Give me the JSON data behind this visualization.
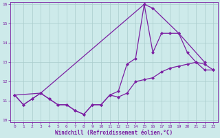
{
  "xlabel": "Windchill (Refroidissement éolien,°C)",
  "bg_color": "#cdeaea",
  "line_color": "#7b1fa2",
  "grid_color": "#aacccc",
  "xlim": [
    -0.5,
    23.5
  ],
  "ylim": [
    9.9,
    16.1
  ],
  "yticks": [
    10,
    11,
    12,
    13,
    14,
    15,
    16
  ],
  "xticks": [
    0,
    1,
    2,
    3,
    4,
    5,
    6,
    7,
    8,
    9,
    10,
    11,
    12,
    13,
    14,
    15,
    16,
    17,
    18,
    19,
    20,
    21,
    22,
    23
  ],
  "line1_x": [
    0,
    1,
    2,
    3,
    4,
    5,
    6,
    7,
    8,
    9,
    10,
    11,
    12,
    13,
    14,
    15,
    16,
    17,
    18,
    19,
    20,
    21,
    22,
    23
  ],
  "line1_y": [
    11.3,
    10.8,
    11.1,
    11.4,
    11.1,
    10.8,
    10.8,
    10.5,
    10.3,
    10.8,
    10.8,
    11.3,
    11.2,
    11.4,
    12.0,
    12.1,
    12.2,
    12.5,
    12.7,
    12.8,
    12.9,
    13.0,
    12.6,
    12.6
  ],
  "line2_x": [
    0,
    1,
    2,
    3,
    4,
    5,
    6,
    7,
    8,
    9,
    10,
    11,
    12,
    13,
    14,
    15,
    16,
    17,
    18,
    19,
    20,
    21,
    22,
    23
  ],
  "line2_y": [
    11.3,
    10.8,
    11.1,
    11.4,
    11.1,
    10.8,
    10.8,
    10.5,
    10.3,
    10.8,
    10.8,
    11.3,
    11.5,
    12.9,
    13.2,
    16.0,
    13.5,
    14.5,
    14.5,
    14.5,
    13.5,
    13.0,
    12.9,
    12.6
  ],
  "line3_x": [
    0,
    3,
    15,
    16,
    19,
    22
  ],
  "line3_y": [
    11.3,
    11.4,
    16.0,
    15.8,
    14.5,
    13.0
  ]
}
